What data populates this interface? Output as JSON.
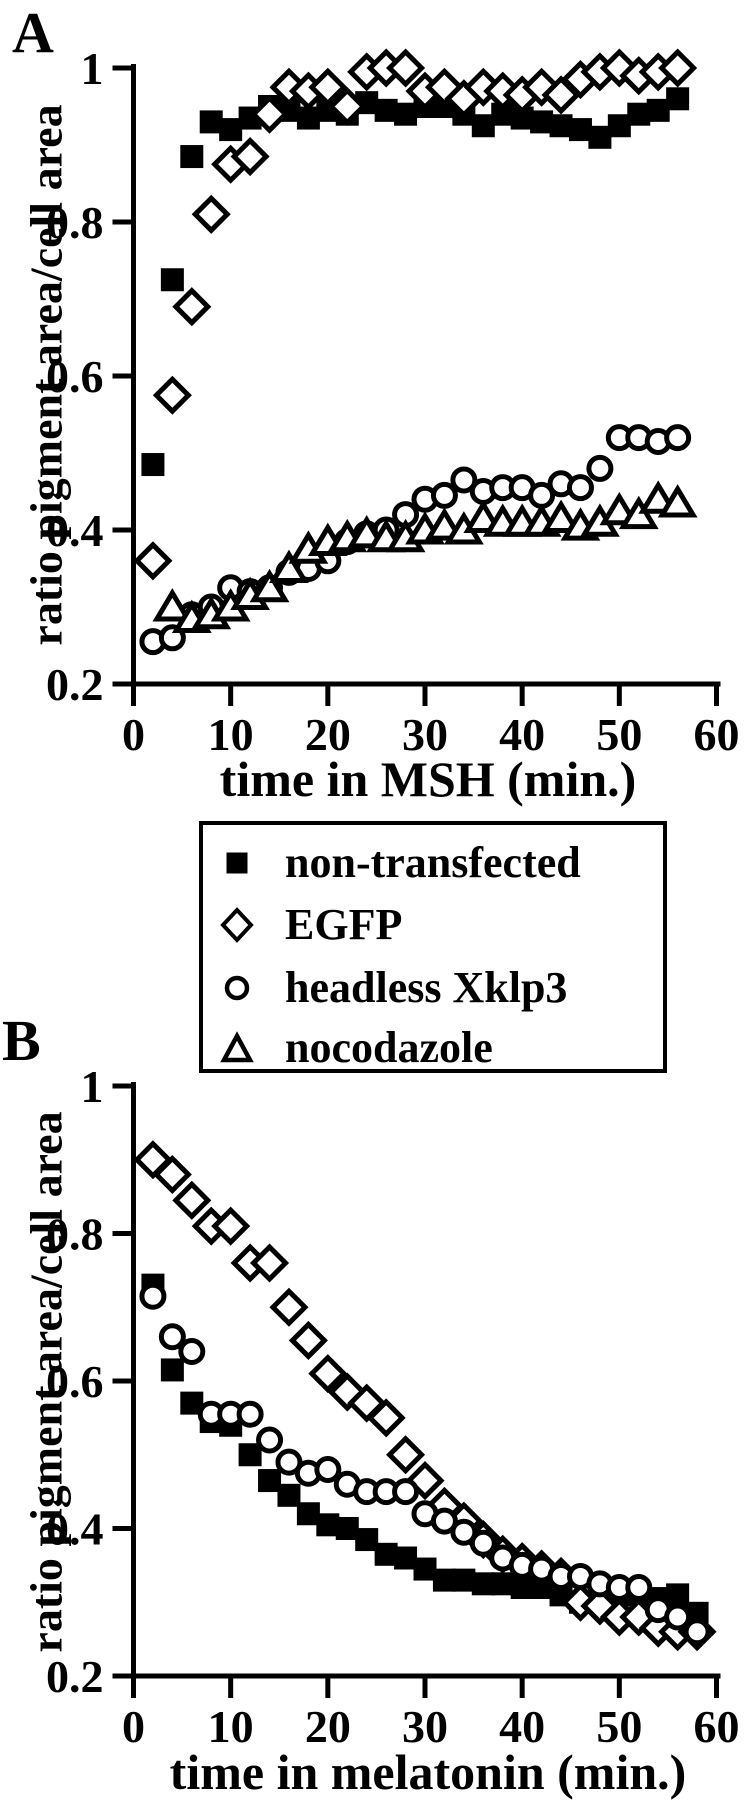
{
  "figure": {
    "background": "#ffffff",
    "ink": "#000000"
  },
  "legend": {
    "items": [
      {
        "marker": "filled-square",
        "label": "non-transfected"
      },
      {
        "marker": "open-diamond",
        "label": "EGFP"
      },
      {
        "marker": "open-circle",
        "label": "headless Xklp3"
      },
      {
        "marker": "open-triangle",
        "label": "nocodazole"
      }
    ]
  },
  "chart_data": [
    {
      "id": "panel-a",
      "type": "scatter",
      "panel_label": "A",
      "xlabel": "time in MSH (min.)",
      "ylabel": "ratio pigment area/cell area",
      "xlim": [
        0,
        60
      ],
      "ylim": [
        0.2,
        1
      ],
      "grid": false,
      "legend_position": "below",
      "xticks": [
        {
          "v": 0,
          "label": "0"
        },
        {
          "v": 10,
          "label": "10"
        },
        {
          "v": 20,
          "label": "20"
        },
        {
          "v": 30,
          "label": "30"
        },
        {
          "v": 40,
          "label": "40"
        },
        {
          "v": 50,
          "label": "50"
        },
        {
          "v": 60,
          "label": "60"
        }
      ],
      "yticks": [
        {
          "v": 1,
          "label": "1"
        },
        {
          "v": 0.8,
          "label": "0.8"
        },
        {
          "v": 0.6,
          "label": "0.6"
        },
        {
          "v": 0.4,
          "label": "0.4"
        },
        {
          "v": 0.2,
          "label": "0.2"
        }
      ],
      "series": [
        {
          "name": "non-transfected",
          "marker": "filled-square",
          "points": [
            [
              2,
              0.485
            ],
            [
              4,
              0.725
            ],
            [
              6,
              0.885
            ],
            [
              8,
              0.93
            ],
            [
              10,
              0.92
            ],
            [
              12,
              0.935
            ],
            [
              14,
              0.95
            ],
            [
              16,
              0.945
            ],
            [
              18,
              0.935
            ],
            [
              20,
              0.945
            ],
            [
              22,
              0.94
            ],
            [
              24,
              0.955
            ],
            [
              26,
              0.945
            ],
            [
              28,
              0.94
            ],
            [
              30,
              0.95
            ],
            [
              32,
              0.95
            ],
            [
              34,
              0.94
            ],
            [
              36,
              0.925
            ],
            [
              38,
              0.94
            ],
            [
              40,
              0.935
            ],
            [
              42,
              0.93
            ],
            [
              44,
              0.925
            ],
            [
              46,
              0.92
            ],
            [
              48,
              0.91
            ],
            [
              50,
              0.925
            ],
            [
              52,
              0.94
            ],
            [
              54,
              0.945
            ],
            [
              56,
              0.96
            ]
          ]
        },
        {
          "name": "EGFP",
          "marker": "open-diamond",
          "points": [
            [
              2,
              0.36
            ],
            [
              4,
              0.575
            ],
            [
              6,
              0.69
            ],
            [
              8,
              0.81
            ],
            [
              10,
              0.875
            ],
            [
              12,
              0.885
            ],
            [
              14,
              0.94
            ],
            [
              16,
              0.975
            ],
            [
              18,
              0.97
            ],
            [
              20,
              0.975
            ],
            [
              22,
              0.95
            ],
            [
              24,
              0.995
            ],
            [
              26,
              1.0
            ],
            [
              28,
              1.0
            ],
            [
              30,
              0.97
            ],
            [
              32,
              0.975
            ],
            [
              34,
              0.96
            ],
            [
              36,
              0.975
            ],
            [
              38,
              0.97
            ],
            [
              40,
              0.965
            ],
            [
              42,
              0.975
            ],
            [
              44,
              0.965
            ],
            [
              46,
              0.985
            ],
            [
              48,
              0.995
            ],
            [
              50,
              1.0
            ],
            [
              52,
              0.99
            ],
            [
              54,
              0.995
            ],
            [
              56,
              1.0
            ]
          ]
        },
        {
          "name": "headless Xklp3",
          "marker": "open-circle",
          "points": [
            [
              2,
              0.255
            ],
            [
              4,
              0.26
            ],
            [
              6,
              0.29
            ],
            [
              8,
              0.3
            ],
            [
              10,
              0.325
            ],
            [
              12,
              0.32
            ],
            [
              14,
              0.325
            ],
            [
              16,
              0.345
            ],
            [
              18,
              0.35
            ],
            [
              20,
              0.36
            ],
            [
              22,
              0.385
            ],
            [
              24,
              0.395
            ],
            [
              26,
              0.4
            ],
            [
              28,
              0.42
            ],
            [
              30,
              0.44
            ],
            [
              32,
              0.445
            ],
            [
              34,
              0.465
            ],
            [
              36,
              0.45
            ],
            [
              38,
              0.455
            ],
            [
              40,
              0.455
            ],
            [
              42,
              0.445
            ],
            [
              44,
              0.46
            ],
            [
              46,
              0.455
            ],
            [
              48,
              0.48
            ],
            [
              50,
              0.52
            ],
            [
              52,
              0.52
            ],
            [
              54,
              0.515
            ],
            [
              56,
              0.52
            ]
          ]
        },
        {
          "name": "nocodazole",
          "marker": "open-triangle",
          "points": [
            [
              4,
              0.3
            ],
            [
              6,
              0.285
            ],
            [
              8,
              0.29
            ],
            [
              10,
              0.3
            ],
            [
              12,
              0.315
            ],
            [
              14,
              0.325
            ],
            [
              16,
              0.35
            ],
            [
              18,
              0.375
            ],
            [
              20,
              0.385
            ],
            [
              22,
              0.39
            ],
            [
              24,
              0.395
            ],
            [
              26,
              0.39
            ],
            [
              28,
              0.39
            ],
            [
              30,
              0.4
            ],
            [
              32,
              0.405
            ],
            [
              34,
              0.4
            ],
            [
              36,
              0.415
            ],
            [
              38,
              0.41
            ],
            [
              40,
              0.41
            ],
            [
              42,
              0.41
            ],
            [
              44,
              0.415
            ],
            [
              46,
              0.405
            ],
            [
              48,
              0.41
            ],
            [
              50,
              0.425
            ],
            [
              52,
              0.42
            ],
            [
              54,
              0.44
            ],
            [
              56,
              0.435
            ]
          ]
        }
      ]
    },
    {
      "id": "panel-b",
      "type": "scatter",
      "panel_label": "B",
      "xlabel": "time in melatonin (min.)",
      "ylabel": "ratio pigment area/cell area",
      "xlim": [
        0,
        60
      ],
      "ylim": [
        0.2,
        1
      ],
      "grid": false,
      "xticks": [
        {
          "v": 0,
          "label": "0"
        },
        {
          "v": 10,
          "label": "10"
        },
        {
          "v": 20,
          "label": "20"
        },
        {
          "v": 30,
          "label": "30"
        },
        {
          "v": 40,
          "label": "40"
        },
        {
          "v": 50,
          "label": "50"
        },
        {
          "v": 60,
          "label": "60"
        }
      ],
      "yticks": [
        {
          "v": 1,
          "label": "1"
        },
        {
          "v": 0.8,
          "label": "0.8"
        },
        {
          "v": 0.6,
          "label": "0.6"
        },
        {
          "v": 0.4,
          "label": "0.4"
        },
        {
          "v": 0.2,
          "label": "0.2"
        }
      ],
      "series": [
        {
          "name": "non-transfected",
          "marker": "filled-square",
          "points": [
            [
              2,
              0.73
            ],
            [
              4,
              0.615
            ],
            [
              6,
              0.57
            ],
            [
              8,
              0.545
            ],
            [
              10,
              0.54
            ],
            [
              12,
              0.5
            ],
            [
              14,
              0.465
            ],
            [
              16,
              0.445
            ],
            [
              18,
              0.42
            ],
            [
              20,
              0.405
            ],
            [
              22,
              0.4
            ],
            [
              24,
              0.385
            ],
            [
              26,
              0.365
            ],
            [
              28,
              0.36
            ],
            [
              30,
              0.345
            ],
            [
              32,
              0.33
            ],
            [
              34,
              0.33
            ],
            [
              36,
              0.325
            ],
            [
              38,
              0.325
            ],
            [
              40,
              0.32
            ],
            [
              42,
              0.32
            ],
            [
              44,
              0.31
            ],
            [
              46,
              0.3
            ],
            [
              48,
              0.31
            ],
            [
              50,
              0.31
            ],
            [
              52,
              0.31
            ],
            [
              54,
              0.305
            ],
            [
              56,
              0.31
            ],
            [
              58,
              0.285
            ]
          ]
        },
        {
          "name": "EGFP",
          "marker": "open-diamond",
          "points": [
            [
              2,
              0.9
            ],
            [
              4,
              0.88
            ],
            [
              6,
              0.845
            ],
            [
              8,
              0.81
            ],
            [
              10,
              0.81
            ],
            [
              12,
              0.76
            ],
            [
              14,
              0.76
            ],
            [
              16,
              0.7
            ],
            [
              18,
              0.655
            ],
            [
              20,
              0.61
            ],
            [
              22,
              0.585
            ],
            [
              24,
              0.57
            ],
            [
              26,
              0.55
            ],
            [
              28,
              0.5
            ],
            [
              30,
              0.465
            ],
            [
              32,
              0.43
            ],
            [
              34,
              0.41
            ],
            [
              36,
              0.385
            ],
            [
              38,
              0.365
            ],
            [
              40,
              0.355
            ],
            [
              42,
              0.345
            ],
            [
              44,
              0.335
            ],
            [
              46,
              0.3
            ],
            [
              48,
              0.295
            ],
            [
              50,
              0.28
            ],
            [
              52,
              0.28
            ],
            [
              54,
              0.265
            ],
            [
              56,
              0.26
            ],
            [
              58,
              0.26
            ]
          ]
        },
        {
          "name": "headless Xklp3",
          "marker": "open-circle",
          "points": [
            [
              2,
              0.715
            ],
            [
              4,
              0.66
            ],
            [
              6,
              0.64
            ],
            [
              8,
              0.555
            ],
            [
              10,
              0.555
            ],
            [
              12,
              0.555
            ],
            [
              14,
              0.52
            ],
            [
              16,
              0.49
            ],
            [
              18,
              0.475
            ],
            [
              20,
              0.48
            ],
            [
              22,
              0.46
            ],
            [
              24,
              0.45
            ],
            [
              26,
              0.45
            ],
            [
              28,
              0.45
            ],
            [
              30,
              0.42
            ],
            [
              32,
              0.41
            ],
            [
              34,
              0.395
            ],
            [
              36,
              0.38
            ],
            [
              38,
              0.36
            ],
            [
              40,
              0.35
            ],
            [
              42,
              0.345
            ],
            [
              44,
              0.335
            ],
            [
              46,
              0.335
            ],
            [
              48,
              0.325
            ],
            [
              50,
              0.32
            ],
            [
              52,
              0.32
            ],
            [
              54,
              0.29
            ],
            [
              56,
              0.28
            ],
            [
              58,
              0.26
            ]
          ]
        }
      ]
    }
  ]
}
